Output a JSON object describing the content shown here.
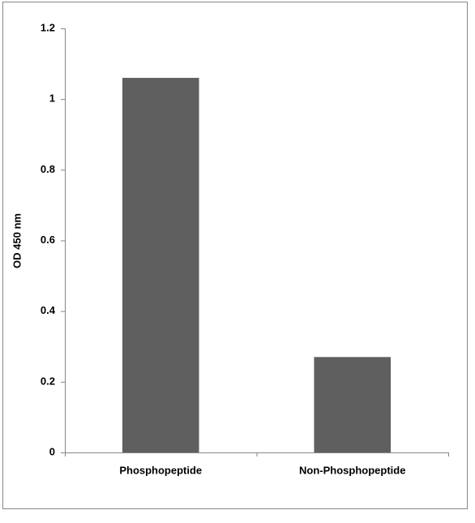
{
  "chart_data": {
    "type": "bar",
    "ylabel": "OD 450 nm",
    "categories": [
      "Phosphopeptide",
      "Non-Phosphopeptide"
    ],
    "values": [
      1.06,
      0.27
    ],
    "color": "#5f5f5f",
    "ylim": [
      0,
      1.2
    ],
    "yticks": [
      0,
      0.2,
      0.4,
      0.6,
      0.8,
      1,
      1.2
    ]
  }
}
